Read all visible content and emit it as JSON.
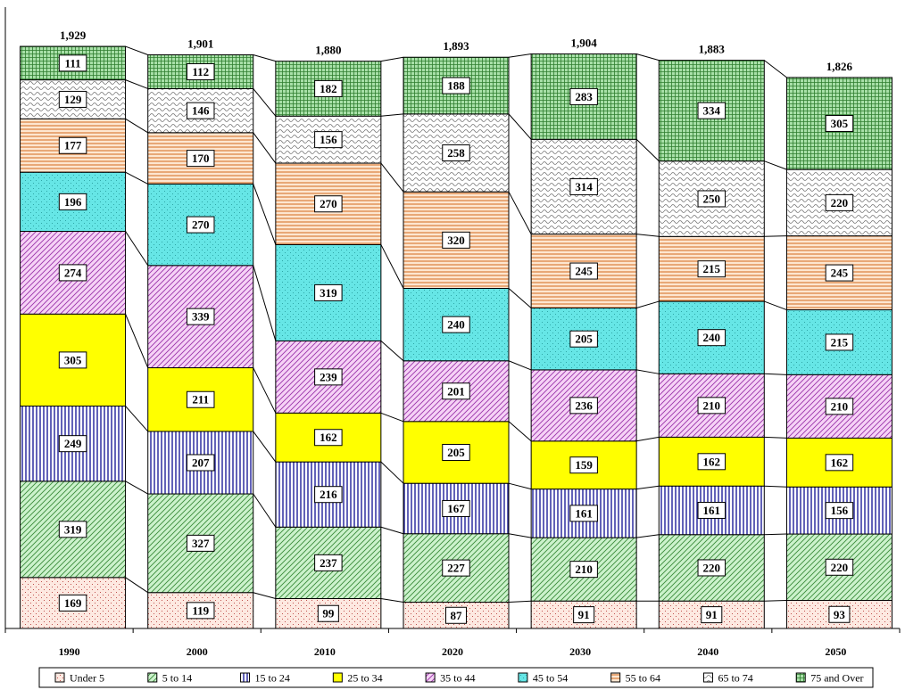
{
  "chart_data": {
    "type": "bar",
    "stacked": true,
    "categories": [
      "1990",
      "2000",
      "2010",
      "2020",
      "2030",
      "2040",
      "2050"
    ],
    "totals": [
      "1,929",
      "1,901",
      "1,880",
      "1,893",
      "1,904",
      "1,883",
      "1,826"
    ],
    "series": [
      {
        "name": "Under 5",
        "values": [
          169,
          119,
          99,
          87,
          91,
          91,
          93
        ]
      },
      {
        "name": "5 to 14",
        "values": [
          319,
          327,
          237,
          227,
          210,
          220,
          220
        ]
      },
      {
        "name": "15 to 24",
        "values": [
          249,
          207,
          216,
          167,
          161,
          161,
          156
        ]
      },
      {
        "name": "25 to 34",
        "values": [
          305,
          211,
          162,
          205,
          159,
          162,
          162
        ]
      },
      {
        "name": "35 to 44",
        "values": [
          274,
          339,
          239,
          201,
          236,
          210,
          210
        ]
      },
      {
        "name": "45 to 54",
        "values": [
          196,
          270,
          319,
          240,
          205,
          240,
          215
        ]
      },
      {
        "name": "55 to 64",
        "values": [
          177,
          170,
          270,
          320,
          245,
          215,
          245
        ]
      },
      {
        "name": "65 to 74",
        "values": [
          129,
          146,
          156,
          258,
          314,
          250,
          220
        ]
      },
      {
        "name": "75 and Over",
        "values": [
          111,
          112,
          182,
          188,
          283,
          334,
          305
        ]
      }
    ],
    "ylim": [
      0,
      2000
    ],
    "grid": false,
    "legend_position": "bottom"
  }
}
